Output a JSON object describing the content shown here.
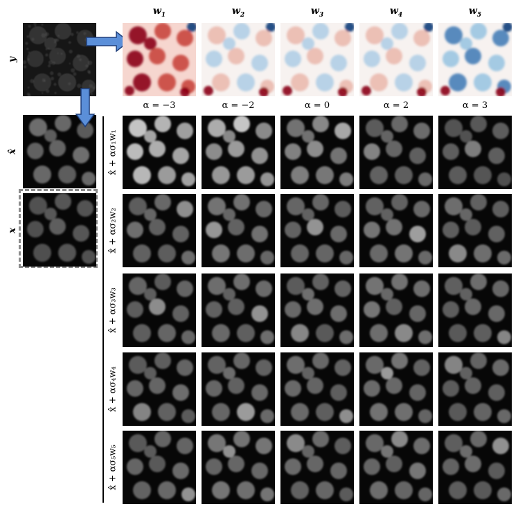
{
  "labels": {
    "y": "y",
    "xhat": "x̂",
    "x": "x"
  },
  "columns": [
    {
      "title": "w",
      "sub": "1",
      "alpha_label": "α = −3",
      "alpha": -3,
      "kind": "red"
    },
    {
      "title": "w",
      "sub": "2",
      "alpha_label": "α = −2",
      "alpha": -2,
      "kind": "mixed"
    },
    {
      "title": "w",
      "sub": "3",
      "alpha_label": "α = 0",
      "alpha": 0,
      "kind": "mixed"
    },
    {
      "title": "w",
      "sub": "4",
      "alpha_label": "α = 2",
      "alpha": 2,
      "kind": "mixed"
    },
    {
      "title": "w",
      "sub": "5",
      "alpha_label": "α = 3",
      "alpha": 3,
      "kind": "blue"
    }
  ],
  "rows": [
    {
      "label": "x̂ + ασ₁w₁"
    },
    {
      "label": "x̂ + ασ₂w₂"
    },
    {
      "label": "x̂ + ασ₃w₃"
    },
    {
      "label": "x̂ + ασ₄w₄"
    },
    {
      "label": "x̂ + ασ₅w₅"
    }
  ],
  "colors": {
    "arrow_fill": "#5b8fd9",
    "arrow_stroke": "#1f3f7a",
    "dash_box": "#8c8c8c",
    "tile_dark": "#0a0a0a",
    "nucleus_gray": "#8a8a8a",
    "red": "#b2182b",
    "blue": "#2166ac"
  }
}
